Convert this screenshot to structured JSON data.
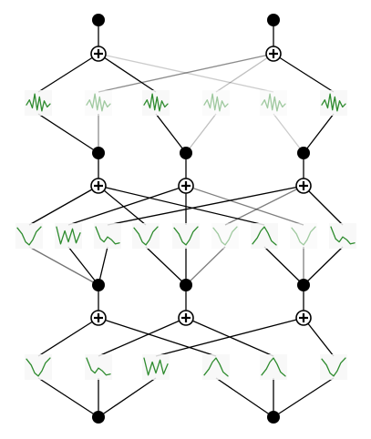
{
  "diagram": {
    "layers": [
      {
        "kind": "node",
        "count": 2
      },
      {
        "kind": "sum",
        "count": 2
      },
      {
        "kind": "activation",
        "count": 6
      },
      {
        "kind": "node",
        "count": 3
      },
      {
        "kind": "sum",
        "count": 3
      },
      {
        "kind": "activation",
        "count": 9
      },
      {
        "kind": "node",
        "count": 3
      },
      {
        "kind": "sum",
        "count": 3
      },
      {
        "kind": "activation",
        "count": 6
      },
      {
        "kind": "node",
        "count": 2
      }
    ],
    "colors": {
      "node": "#000000",
      "edge": "#000000",
      "curve": "#2e8b2e",
      "background": "#ffffff"
    },
    "activation_shapes": [
      "wiggle",
      "wiggle-faint",
      "wiggle",
      "wiggle-faint",
      "wiggle-faint",
      "wiggle",
      "v",
      "w",
      "slope",
      "v",
      "v",
      "v-faint",
      "n",
      "v-faint",
      "slope",
      "v",
      "slope",
      "w",
      "n",
      "n",
      "v"
    ]
  }
}
